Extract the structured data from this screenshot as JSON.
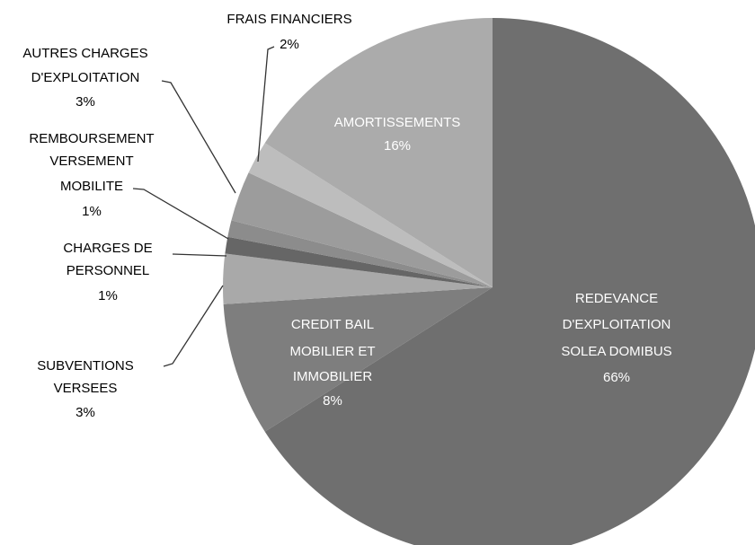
{
  "chart_data": {
    "type": "pie",
    "categories": [
      [
        "REDEVANCE",
        "D'EXPLOITATION",
        "SOLEA DOMIBUS"
      ],
      [
        "CREDIT BAIL",
        "MOBILIER ET",
        "IMMOBILIER"
      ],
      [
        "SUBVENTIONS",
        "VERSEES"
      ],
      [
        "CHARGES DE",
        "PERSONNEL"
      ],
      [
        "REMBOURSEMENT",
        "VERSEMENT",
        "MOBILITE"
      ],
      [
        "AUTRES CHARGES",
        "D'EXPLOITATION"
      ],
      [
        "FRAIS FINANCIERS"
      ],
      [
        "AMORTISSEMENTS"
      ]
    ],
    "values": [
      66,
      8,
      3,
      1,
      1,
      3,
      2,
      16
    ],
    "value_labels": [
      "66%",
      "8%",
      "3%",
      "1%",
      "1%",
      "3%",
      "2%",
      "16%"
    ],
    "colors": [
      "#6f6f6f",
      "#7e7e7e",
      "#a9a9a9",
      "#666666",
      "#8c8c8c",
      "#9c9c9c",
      "#bdbdbd",
      "#ababab"
    ]
  }
}
